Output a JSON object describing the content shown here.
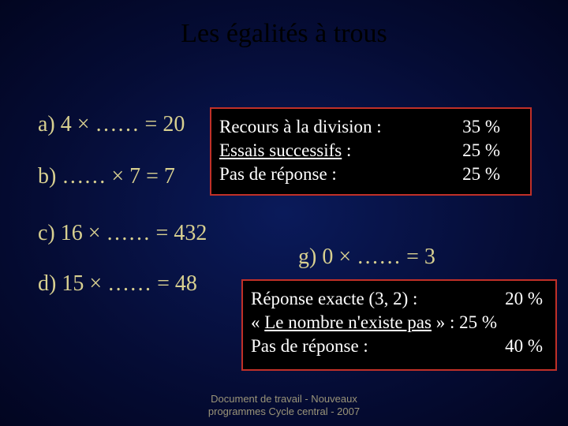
{
  "title": "Les égalités à trous",
  "equations": {
    "a": "a)  4 × ……  = 20",
    "b": "b)  …… × 7  = 7",
    "c": "c)  16 × ……  = 432",
    "d": "d)  15 × ……  = 48",
    "g": "g)  0 × ……  = 3"
  },
  "box1": {
    "row1_left": "Recours à la division :",
    "row1_right": "35 %",
    "row2_left_pre": "",
    "row2_left_u": "Essais successifs",
    "row2_left_post": " :",
    "row2_right": "25 %",
    "row3_left": "Pas de réponse :",
    "row3_right": "25 %"
  },
  "box2": {
    "row1_left": "Réponse exacte (3, 2) :",
    "row1_right": "20 %",
    "row2_pre": "« ",
    "row2_u": "Le nombre n'existe pas",
    "row2_post": " » : 25 %",
    "row3_left": "Pas de réponse :",
    "row3_right": "40 %"
  },
  "footer": {
    "line1": "Document de travail - Nouveaux",
    "line2": "programmes Cycle central - 2007"
  },
  "style": {
    "title_color": "#000000",
    "title_fontsize": 34,
    "eq_color": "#d8d090",
    "eq_fontsize": 28,
    "box_border": "#c03028",
    "box_bg": "#000000",
    "box_text": "#ffffff",
    "box_fontsize": 23,
    "footer_color": "#9a9478",
    "footer_fontsize": 13,
    "bg_center": "#0a1a5a",
    "bg_outer": "#020520"
  }
}
